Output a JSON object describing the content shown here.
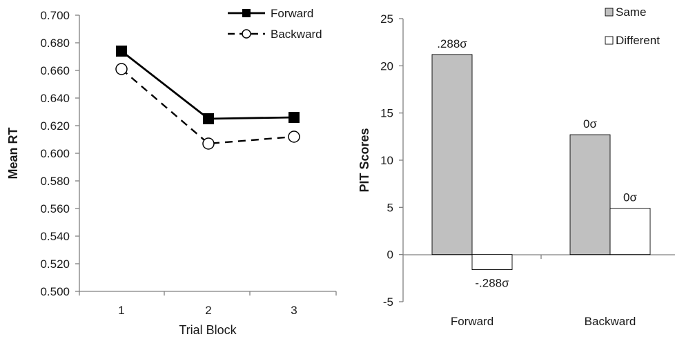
{
  "chart_data": [
    {
      "type": "line",
      "title": "",
      "xlabel": "Trial Block",
      "ylabel": "Mean RT",
      "x": [
        "1",
        "2",
        "3"
      ],
      "ylim": [
        0.5,
        0.7
      ],
      "yticks": [
        "0.700",
        "0.680",
        "0.660",
        "0.640",
        "0.620",
        "0.600",
        "0.580",
        "0.560",
        "0.540",
        "0.520",
        "0.500"
      ],
      "grid": false,
      "legend_position": "top-right",
      "series": [
        {
          "name": "Forward",
          "values": [
            0.674,
            0.625,
            0.626
          ],
          "marker": "filled-square",
          "line": "solid",
          "color": "#000000"
        },
        {
          "name": "Backward",
          "values": [
            0.661,
            0.607,
            0.612
          ],
          "marker": "open-circle",
          "line": "dashed",
          "color": "#000000"
        }
      ]
    },
    {
      "type": "bar",
      "title": "",
      "xlabel": "",
      "ylabel": "PIT Scores",
      "categories": [
        "Forward",
        "Backward"
      ],
      "ylim": [
        -5,
        25
      ],
      "yticks": [
        "25",
        "20",
        "15",
        "10",
        "5",
        "0",
        "-5"
      ],
      "grid": false,
      "legend_position": "top-right",
      "series": [
        {
          "name": "Same",
          "values": [
            21.2,
            12.7
          ],
          "color": "#c0c0c0",
          "labels": [
            ".288σ",
            "0σ"
          ]
        },
        {
          "name": "Different",
          "values": [
            -1.6,
            4.9
          ],
          "color": "#ffffff",
          "labels": [
            "-.288σ",
            "0σ"
          ]
        }
      ]
    }
  ]
}
